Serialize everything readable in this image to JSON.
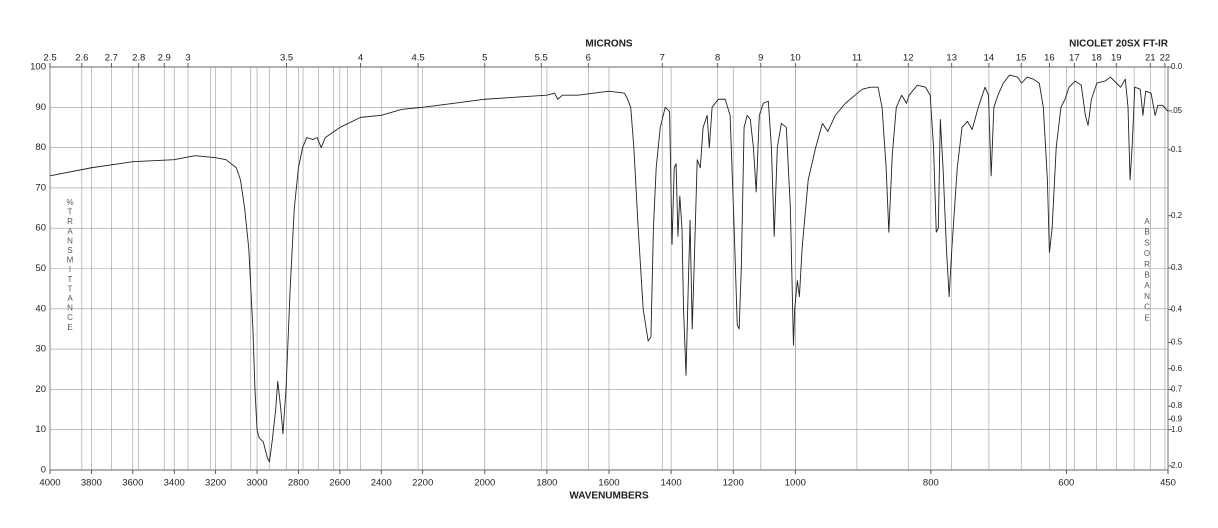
{
  "chart_data": {
    "type": "line",
    "brand": "NICOLET 20SX FT-IR",
    "x_label": "WAVENUMBERS",
    "x2_label": "MICRONS",
    "y_label": "%TRANSMITTANCE",
    "y2_label": "ABSORBANCE",
    "xlim": [
      4000,
      450
    ],
    "xscale": "piecewise",
    "xbreaks": [
      4000,
      2200,
      1000,
      450
    ],
    "xticks": [
      4000,
      3800,
      3600,
      3400,
      3200,
      3000,
      2800,
      2600,
      2400,
      2200,
      2000,
      1800,
      1600,
      1400,
      1200,
      1000,
      800,
      600,
      450
    ],
    "x2ticks": [
      2.5,
      2.6,
      2.7,
      2.8,
      2.9,
      3,
      3.5,
      4,
      4.5,
      5,
      5.5,
      6,
      7,
      8,
      9,
      10,
      11,
      12,
      13,
      14,
      15,
      16,
      17,
      18,
      19,
      21,
      22
    ],
    "x2minor": [
      3.1,
      3.2,
      3.3,
      3.4,
      3.6,
      3.7,
      3.8,
      3.9,
      20
    ],
    "ylim": [
      0,
      100
    ],
    "yticks": [
      0,
      10,
      20,
      30,
      40,
      50,
      60,
      70,
      80,
      90,
      100
    ],
    "y2scale": "absorbance",
    "y2ticks": [
      {
        "value": 0,
        "label": "0.0"
      },
      {
        "value": 0.05,
        "label": ".05"
      },
      0.1,
      0.2,
      0.3,
      0.4,
      0.5,
      0.6,
      0.7,
      0.8,
      0.9,
      {
        "value": 1,
        "label": "1.0"
      },
      {
        "value": 2,
        "label": "2.0"
      }
    ],
    "grid": true,
    "color": "#222222",
    "x": [
      4000,
      3800,
      3600,
      3400,
      3300,
      3200,
      3150,
      3100,
      3080,
      3060,
      3040,
      3020,
      3010,
      3000,
      2990,
      2970,
      2950,
      2940,
      2925,
      2910,
      2900,
      2885,
      2875,
      2860,
      2840,
      2820,
      2800,
      2780,
      2760,
      2730,
      2710,
      2690,
      2670,
      2600,
      2500,
      2400,
      2300,
      2200,
      2100,
      2000,
      1900,
      1800,
      1775,
      1765,
      1750,
      1700,
      1600,
      1550,
      1540,
      1530,
      1520,
      1506,
      1490,
      1474,
      1465,
      1457,
      1448,
      1435,
      1419,
      1405,
      1397,
      1390,
      1384,
      1378,
      1372,
      1365,
      1360,
      1352,
      1345,
      1339,
      1332,
      1326,
      1316,
      1306,
      1297,
      1284,
      1277,
      1268,
      1248,
      1226,
      1210,
      1197,
      1187,
      1181,
      1174,
      1165,
      1155,
      1145,
      1135,
      1126,
      1116,
      1103,
      1087,
      1077,
      1068,
      1058,
      1045,
      1029,
      1016,
      1006,
      1002,
      997,
      994,
      990,
      981,
      970,
      960,
      952,
      941,
      926,
      912,
      901,
      889,
      878,
      872,
      866,
      862,
      857,
      851,
      843,
      836,
      832,
      820,
      808,
      801,
      796,
      792,
      789,
      786,
      782,
      777,
      773,
      769,
      761,
      754,
      746,
      739,
      730,
      720,
      715,
      711,
      707,
      701,
      693,
      684,
      672,
      666,
      658,
      649,
      640,
      634,
      628,
      625,
      621,
      615,
      608,
      602,
      596,
      587,
      578,
      572,
      568,
      563,
      555,
      543,
      535,
      526,
      520,
      513,
      509,
      506,
      503,
      499,
      491,
      487,
      483,
      475,
      469,
      465,
      458,
      450
    ],
    "values": [
      73,
      75,
      76.5,
      77,
      78,
      77.5,
      77,
      75,
      72,
      65,
      55,
      35,
      20,
      10,
      8,
      7,
      3,
      2,
      8,
      15,
      22,
      15,
      9,
      20,
      45,
      65,
      75,
      80,
      82.5,
      82,
      82.5,
      80,
      82.5,
      85,
      87.5,
      88,
      89.5,
      90,
      91,
      92,
      92.5,
      93,
      93.5,
      92,
      93,
      93,
      94,
      93.5,
      92,
      90,
      80,
      60,
      40,
      32,
      33,
      60,
      75,
      85,
      90,
      89,
      56,
      75,
      76,
      58,
      68,
      60,
      40,
      23.5,
      45,
      62,
      35,
      50,
      77,
      75,
      85,
      88,
      80,
      90,
      92,
      92,
      88,
      60,
      36,
      35,
      50,
      85,
      88,
      87,
      80,
      69,
      88,
      91,
      91.5,
      80,
      58,
      80,
      86,
      85,
      65,
      31,
      40,
      47,
      43,
      55,
      72,
      80,
      86,
      84,
      88,
      91,
      93,
      94.5,
      95,
      95,
      90,
      75,
      59,
      78,
      90,
      93,
      91,
      93,
      95.5,
      95,
      93,
      80,
      59,
      60,
      87,
      75,
      55,
      43,
      55,
      75,
      85,
      86.5,
      84.5,
      90,
      95,
      93,
      73,
      90,
      93,
      96,
      98,
      97.5,
      96,
      97.5,
      97,
      96,
      90,
      72,
      54,
      60,
      80,
      90,
      92,
      95,
      96.5,
      95.5,
      88,
      85.5,
      92,
      96,
      96.5,
      97.5,
      96,
      95,
      97,
      90,
      72,
      80,
      95,
      94.5,
      88,
      94,
      93.5,
      88,
      90.5,
      90.5,
      89
    ]
  }
}
